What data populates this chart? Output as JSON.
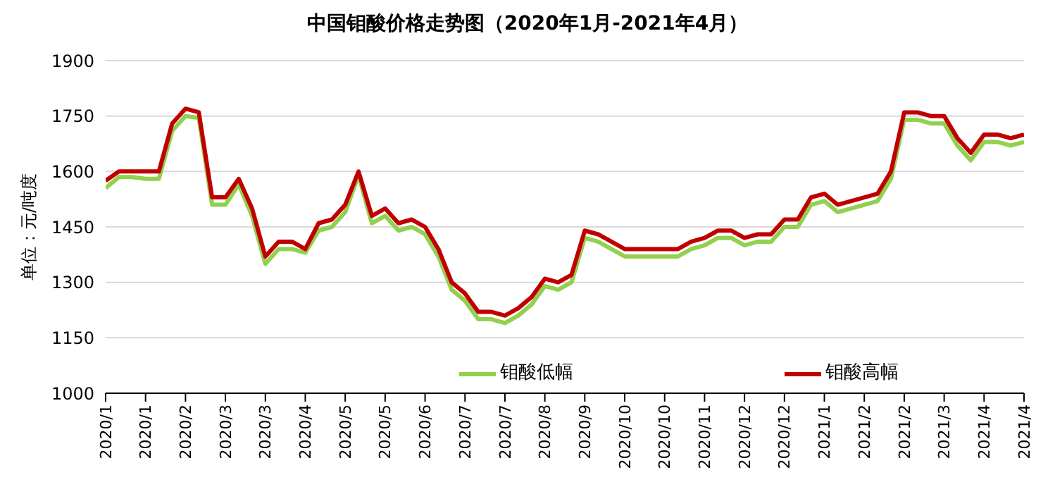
{
  "chart_data": {
    "type": "line",
    "title": "中国钼酸价格走势图（2020年1月-2021年4月）",
    "ylabel": "单位：元/吨度",
    "categories": [
      "2020/1",
      null,
      null,
      "2020/1",
      null,
      null,
      "2020/2",
      null,
      null,
      "2020/3",
      null,
      null,
      "2020/3",
      null,
      null,
      "2020/4",
      null,
      null,
      "2020/5",
      null,
      null,
      "2020/5",
      null,
      null,
      "2020/6",
      null,
      null,
      "2020/7",
      null,
      null,
      "2020/7",
      null,
      null,
      "2020/8",
      null,
      null,
      "2020/9",
      null,
      null,
      "2020/10",
      null,
      null,
      "2020/10",
      null,
      null,
      "2020/11",
      null,
      null,
      "2020/12",
      null,
      null,
      "2020/12",
      null,
      null,
      "2021/1",
      null,
      null,
      "2021/2",
      null,
      null,
      "2021/2",
      null,
      null,
      "2021/3",
      null,
      null,
      "2021/4",
      null,
      null,
      "2021/4"
    ],
    "series": [
      {
        "name": "钼酸低幅",
        "color": "#92d050",
        "values": [
          1555,
          1585,
          1585,
          1580,
          1580,
          1710,
          1750,
          1745,
          1510,
          1510,
          1565,
          1480,
          1350,
          1390,
          1390,
          1380,
          1440,
          1450,
          1490,
          1590,
          1460,
          1480,
          1440,
          1450,
          1430,
          1370,
          1280,
          1250,
          1200,
          1200,
          1190,
          1210,
          1240,
          1290,
          1280,
          1300,
          1420,
          1410,
          1390,
          1370,
          1370,
          1370,
          1370,
          1370,
          1390,
          1400,
          1420,
          1420,
          1400,
          1410,
          1410,
          1450,
          1450,
          1510,
          1520,
          1490,
          1500,
          1510,
          1520,
          1580,
          1740,
          1740,
          1730,
          1730,
          1670,
          1630,
          1680,
          1680,
          1670,
          1680
        ]
      },
      {
        "name": "钼酸高幅",
        "color": "#c00000",
        "values": [
          1575,
          1600,
          1600,
          1600,
          1600,
          1730,
          1770,
          1760,
          1530,
          1530,
          1580,
          1500,
          1370,
          1410,
          1410,
          1390,
          1460,
          1470,
          1510,
          1600,
          1480,
          1500,
          1460,
          1470,
          1450,
          1390,
          1300,
          1270,
          1220,
          1220,
          1210,
          1230,
          1260,
          1310,
          1300,
          1320,
          1440,
          1430,
          1410,
          1390,
          1390,
          1390,
          1390,
          1390,
          1410,
          1420,
          1440,
          1440,
          1420,
          1430,
          1430,
          1470,
          1470,
          1530,
          1540,
          1510,
          1520,
          1530,
          1540,
          1600,
          1760,
          1760,
          1750,
          1750,
          1690,
          1650,
          1700,
          1700,
          1690,
          1700
        ]
      }
    ],
    "ylim": [
      1000,
      1900
    ],
    "yticks": [
      1000,
      1150,
      1300,
      1450,
      1600,
      1750,
      1900
    ],
    "grid": "y",
    "legend": "bottom",
    "marker": "none",
    "line_style": "solid"
  }
}
